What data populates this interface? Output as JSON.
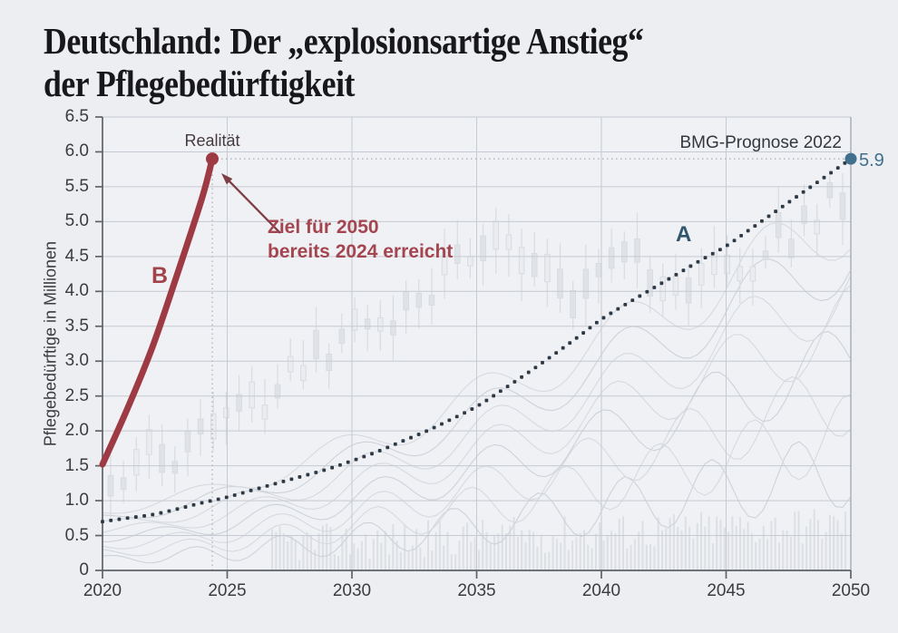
{
  "title": {
    "line1": "Deutschland: Der „explosionsartige Anstieg“",
    "line2": "der Pflegebedürftigkeit"
  },
  "annotations": {
    "realitaet": "Realität",
    "ziel_line1": "Ziel für 2050",
    "ziel_line2": "bereits 2024 erreicht",
    "bmg": "BMG-Prognose 2022",
    "a": "A",
    "b": "B",
    "end_value": "5.9"
  },
  "colors": {
    "background": "#eceef2",
    "plot_background": "#eff1f4",
    "grid": "#c6cad2",
    "axis": "#5f6368",
    "guide": "#a7acb4",
    "series_a": "#2d3944",
    "series_a_endpoint": "#41708f",
    "series_b": "#9e3a43",
    "annotation_red": "#a4454f",
    "arrow": "#7f3d46",
    "label_a": "#2f566d",
    "ghost": "#c6cad2",
    "text": "#3b3c3e"
  },
  "chart_data": {
    "type": "line",
    "title": "Deutschland: Der „explosionsartige Anstieg“ der Pflegebedürftigkeit",
    "xlabel": "",
    "ylabel": "Pflegebedürftige in Millionen",
    "xlim": [
      2020,
      2050
    ],
    "ylim": [
      0,
      6.5
    ],
    "x_ticks": [
      "2020",
      "2025",
      "2030",
      "2035",
      "2040",
      "2045",
      "2050"
    ],
    "y_ticks": [
      "0",
      "0.5",
      "1.0",
      "1.5",
      "2.0",
      "2.5",
      "3.0",
      "3.5",
      "4.0",
      "4.5",
      "5.0",
      "5.5",
      "6.0",
      "6.5"
    ],
    "grid": true,
    "legend_position": "none",
    "series": [
      {
        "name": "BMG-Prognose 2022",
        "label": "A",
        "style": "dotted",
        "color": "#2d3944",
        "x": [
          2020,
          2021,
          2022,
          2023,
          2024,
          2025,
          2026,
          2027,
          2028,
          2029,
          2030,
          2031,
          2032,
          2033,
          2034,
          2035,
          2036,
          2037,
          2038,
          2039,
          2040,
          2041,
          2042,
          2043,
          2044,
          2045,
          2046,
          2047,
          2048,
          2049,
          2050
        ],
        "values": [
          0.7,
          0.75,
          0.8,
          0.88,
          0.97,
          1.05,
          1.15,
          1.25,
          1.35,
          1.45,
          1.57,
          1.7,
          1.85,
          2.0,
          2.17,
          2.35,
          2.58,
          2.82,
          3.07,
          3.33,
          3.6,
          3.82,
          4.03,
          4.24,
          4.45,
          4.65,
          4.9,
          5.15,
          5.4,
          5.65,
          5.9
        ],
        "endpoint": {
          "x": 2050,
          "value": 5.9,
          "label": "5.9"
        }
      },
      {
        "name": "Realität",
        "label": "B",
        "style": "solid",
        "color": "#9e3a43",
        "x": [
          2020,
          2021,
          2022,
          2023,
          2024,
          2024.4
        ],
        "values": [
          1.52,
          2.32,
          3.2,
          4.25,
          5.35,
          5.9
        ],
        "endpoint": {
          "x": 2024.4,
          "value": 5.9,
          "label": "Realität"
        }
      }
    ],
    "note": {
      "text": "Ziel für 2050 bereits 2024 erreicht",
      "points_to": {
        "x": 2024.4,
        "value": 5.9
      }
    },
    "guides": [
      {
        "type": "horizontal",
        "value": 5.9,
        "from_x": 2024.4,
        "to_x": 2050
      },
      {
        "type": "vertical",
        "x": 2024.4,
        "from_value": 0,
        "to_value": 5.9
      }
    ]
  }
}
